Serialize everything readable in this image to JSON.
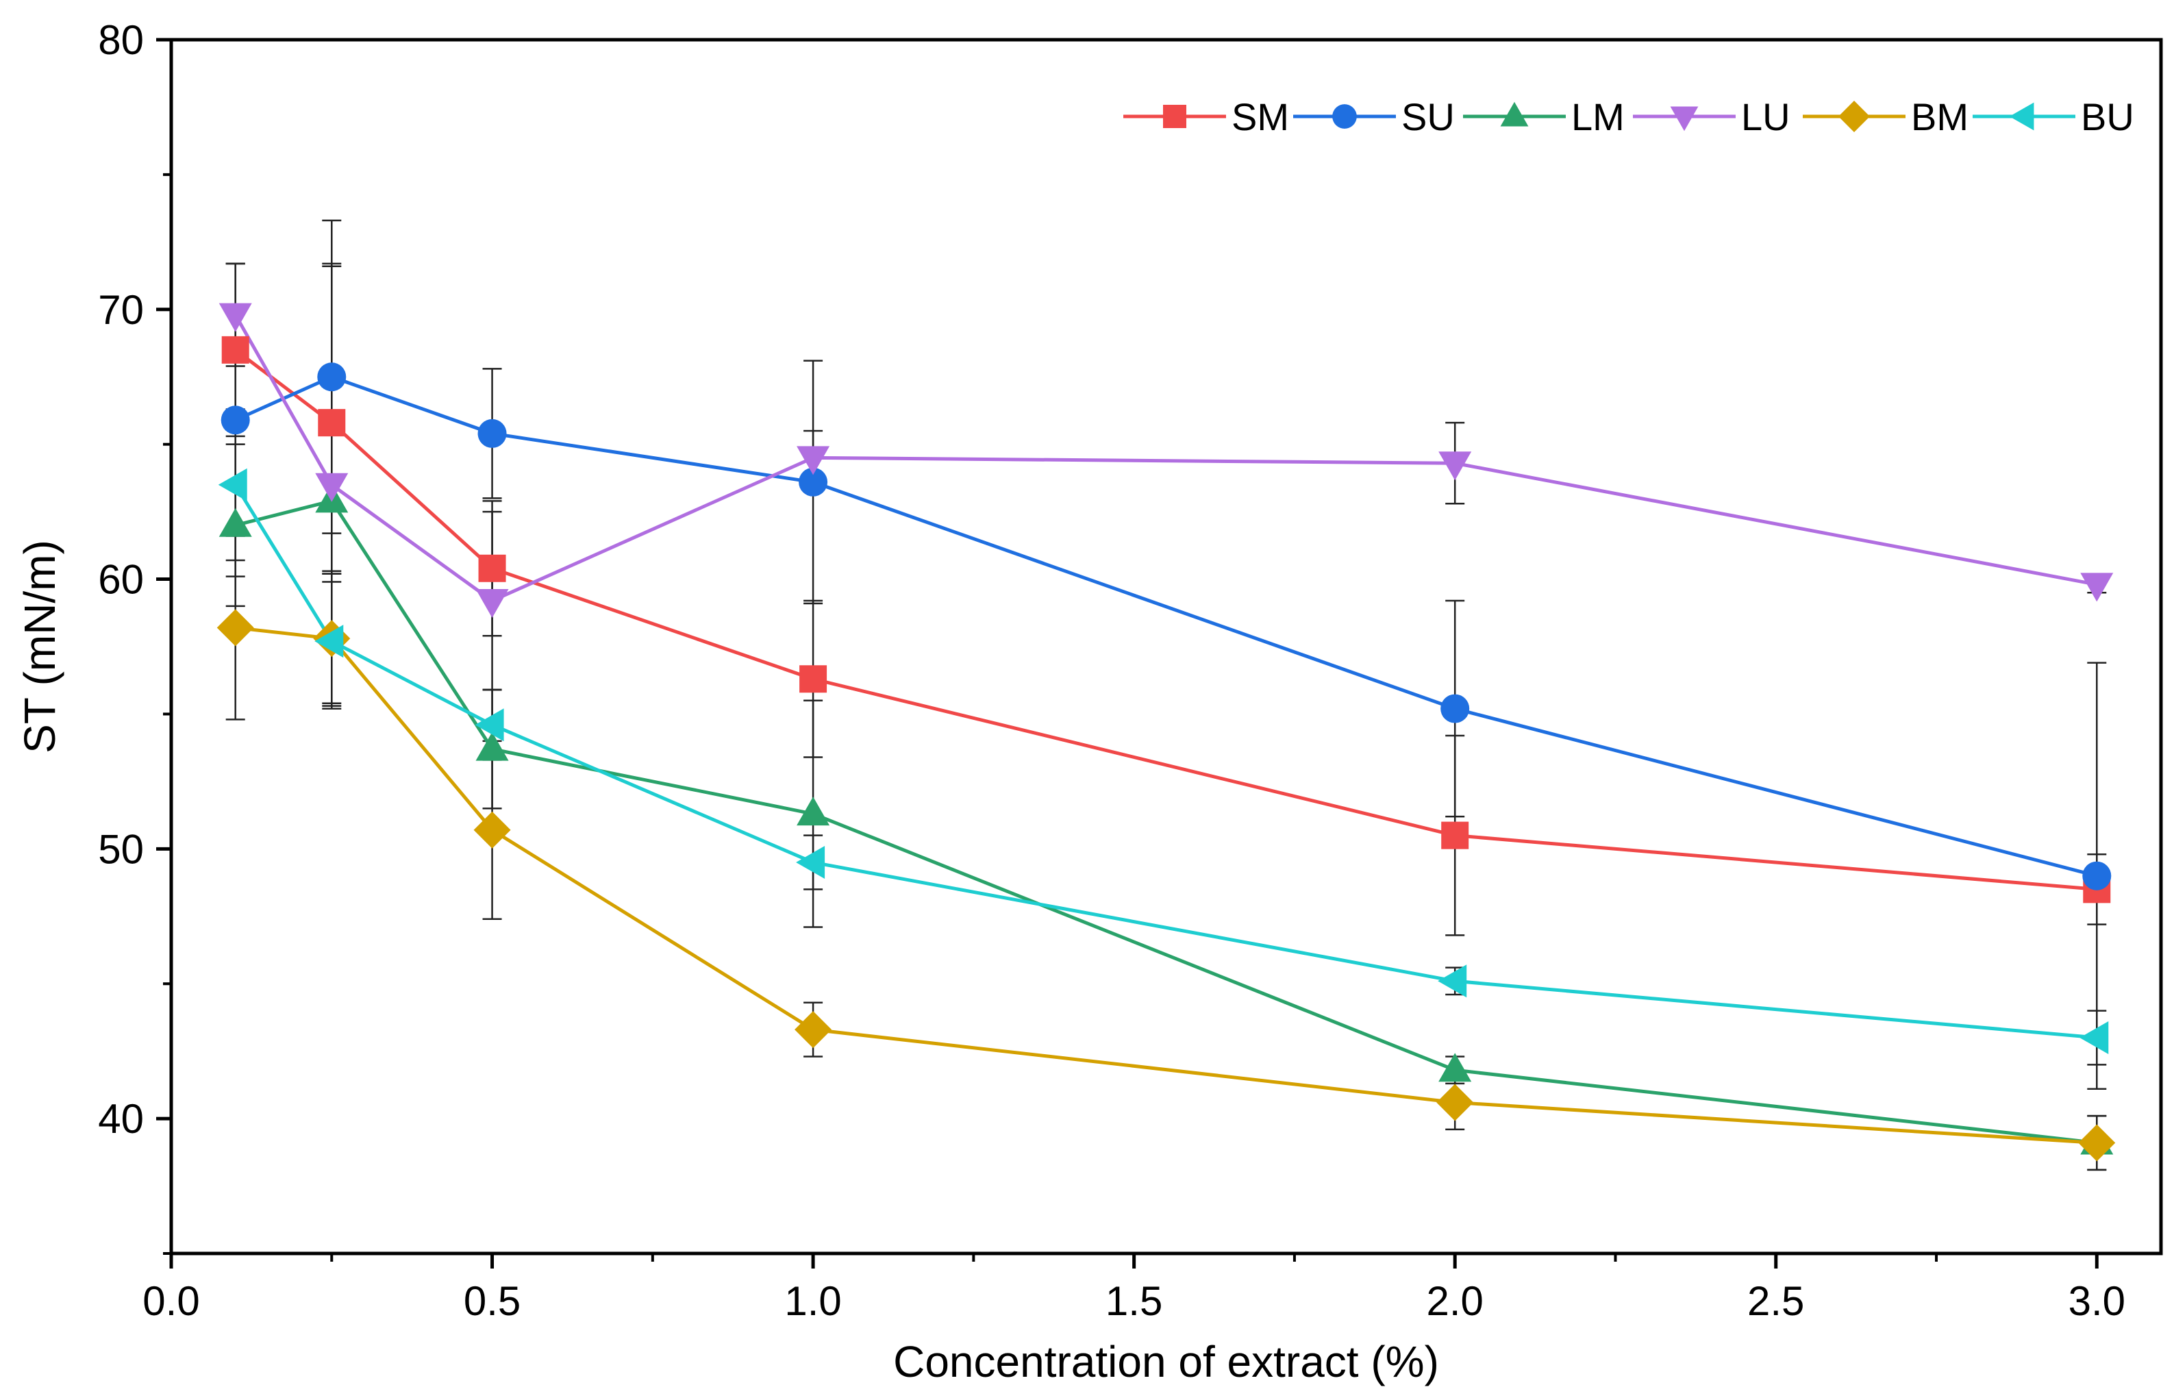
{
  "chart_data": {
    "type": "line",
    "title": "",
    "xlabel": "Concentration of extract (%)",
    "ylabel": "ST (mN/m)",
    "xlim": [
      0.0,
      3.1
    ],
    "ylim": [
      35,
      80
    ],
    "xticks": [
      0.0,
      0.5,
      1.0,
      1.5,
      2.0,
      2.5,
      3.0
    ],
    "xtick_labels": [
      "0.0",
      "0.5",
      "1.0",
      "1.5",
      "2.0",
      "2.5",
      "3.0"
    ],
    "yticks": [
      40,
      50,
      60,
      70,
      80
    ],
    "ytick_labels": [
      "40",
      "50",
      "60",
      "70",
      "80"
    ],
    "x": [
      0.1,
      0.25,
      0.5,
      1.0,
      2.0,
      3.0
    ],
    "grid": false,
    "legend_position": "top-right",
    "series": [
      {
        "name": "SM",
        "color": "#f04848",
        "marker": "square",
        "values": [
          68.5,
          65.8,
          60.4,
          56.3,
          50.5,
          48.5
        ],
        "errors": [
          3.2,
          5.9,
          2.5,
          2.9,
          3.7,
          1.3
        ]
      },
      {
        "name": "SU",
        "color": "#1f6fe0",
        "marker": "circle",
        "values": [
          65.9,
          67.5,
          65.4,
          63.6,
          55.2,
          49.0
        ],
        "errors": [
          5.8,
          5.8,
          2.4,
          4.5,
          4.0,
          7.9
        ]
      },
      {
        "name": "LM",
        "color": "#2aa26a",
        "marker": "triangle-up",
        "values": [
          62.0,
          62.9,
          53.7,
          51.3,
          41.8,
          39.1
        ],
        "errors": [
          3.0,
          2.7,
          2.2,
          4.2,
          0.5,
          1.0
        ]
      },
      {
        "name": "LU",
        "color": "#b06ee0",
        "marker": "triangle-down",
        "values": [
          69.8,
          63.5,
          59.2,
          64.5,
          64.3,
          59.8
        ],
        "errors": [
          1.9,
          8.1,
          3.3,
          1.0,
          1.5,
          0.3
        ]
      },
      {
        "name": "BM",
        "color": "#d4a000",
        "marker": "diamond",
        "values": [
          58.2,
          57.8,
          50.7,
          43.3,
          40.6,
          39.1
        ],
        "errors": [
          3.4,
          2.5,
          3.3,
          1.0,
          1.0,
          1.0
        ]
      },
      {
        "name": "BU",
        "color": "#1ecdd0",
        "marker": "triangle-left",
        "values": [
          63.5,
          57.7,
          54.6,
          49.5,
          45.1,
          43.0
        ],
        "errors": [
          2.8,
          2.5,
          1.3,
          1.0,
          0.5,
          1.0
        ]
      }
    ]
  }
}
